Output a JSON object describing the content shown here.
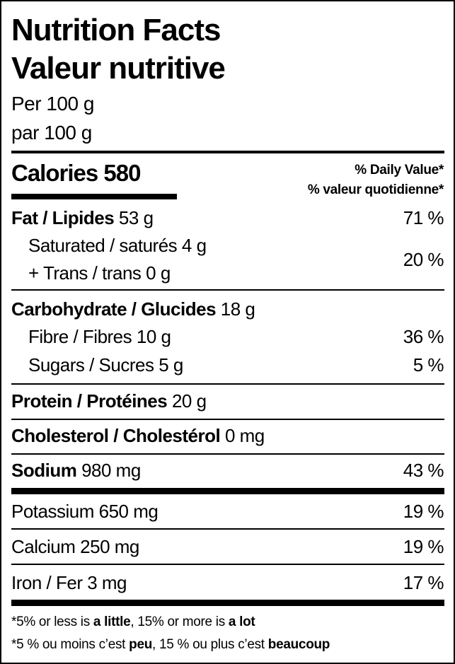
{
  "label": {
    "title_en": "Nutrition Facts",
    "title_fr": "Valeur nutritive",
    "serving_en": "Per 100 g",
    "serving_fr": "par 100 g",
    "calories_label": "Calories",
    "calories_value": "580",
    "dv_en": "% Daily Value*",
    "dv_fr": "% valeur quotidienne*",
    "rows": [
      {
        "name": "Fat / Lipides",
        "amount": "53 g",
        "dv": "71 %"
      },
      {
        "name": "Saturated / saturés",
        "amount": "4 g"
      },
      {
        "name": "+ Trans / trans",
        "amount": "0 g",
        "dv": "20 %"
      },
      {
        "name": "Carbohydrate / Glucides",
        "amount": "18 g"
      },
      {
        "name": "Fibre / Fibres",
        "amount": "10 g",
        "dv": "36 %"
      },
      {
        "name": "Sugars / Sucres",
        "amount": "5 g",
        "dv": "5 %"
      },
      {
        "name": "Protein / Protéines",
        "amount": "20 g"
      },
      {
        "name": "Cholesterol / Cholestérol",
        "amount": "0 mg"
      },
      {
        "name": "Sodium",
        "amount": "980 mg",
        "dv": "43 %"
      },
      {
        "name": "Potassium",
        "amount": "650 mg",
        "dv": "19 %"
      },
      {
        "name": "Calcium",
        "amount": "250 mg",
        "dv": "19 %"
      },
      {
        "name": "Iron / Fer",
        "amount": "3 mg",
        "dv": "17 %"
      }
    ],
    "footnote_en": {
      "a": "*5% or less is ",
      "b": "a little",
      "c": ", 15% or more is ",
      "d": "a lot"
    },
    "footnote_fr": {
      "a": "*5 % ou moins c’est ",
      "b": "peu",
      "c": ", 15 % ou plus c’est ",
      "d": "beaucoup"
    }
  }
}
